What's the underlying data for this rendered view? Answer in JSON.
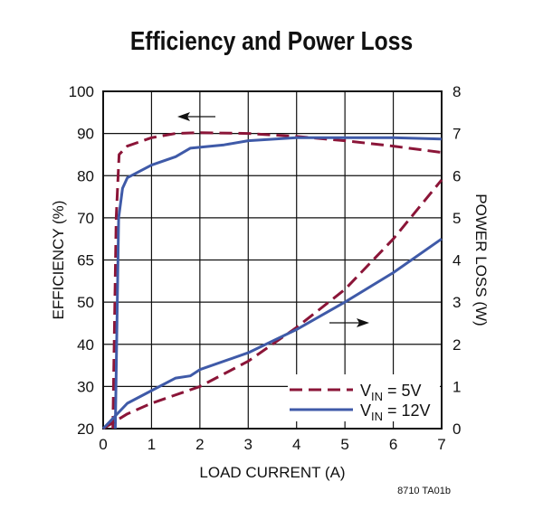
{
  "chart_data": {
    "type": "line",
    "title": "Efficiency and Power Loss",
    "xlabel": "LOAD CURRENT (A)",
    "ylabel_left": "EFFICIENCY (%)",
    "ylabel_right": "POWER LOSS (W)",
    "xlim": [
      0,
      7
    ],
    "ylim_left": [
      20,
      100
    ],
    "ylim_right": [
      0,
      8
    ],
    "x_ticks": [
      "0",
      "1",
      "2",
      "3",
      "4",
      "5",
      "6",
      "7"
    ],
    "y_left_ticks": [
      "20",
      "30",
      "40",
      "50",
      "65",
      "70",
      "80",
      "90",
      "100"
    ],
    "y_right_ticks": [
      "0",
      "1",
      "2",
      "3",
      "4",
      "5",
      "6",
      "7",
      "8"
    ],
    "grid": true,
    "legend_position": "bottom-right",
    "footnote": "8710 TA01b",
    "series": [
      {
        "name": "VIN = 5V",
        "legend_main": "V",
        "legend_sub": "IN",
        "legend_rest": " = 5V",
        "axis": "left",
        "style": "dashed",
        "color": "#8b1538",
        "x": [
          0.2,
          0.27,
          0.33,
          0.5,
          1,
          1.5,
          2,
          3,
          4,
          5,
          6,
          7
        ],
        "y": [
          20,
          70,
          85,
          87,
          89,
          90,
          90.2,
          90,
          89.3,
          88.3,
          87,
          85.5
        ]
      },
      {
        "name": "VIN = 12V",
        "legend_main": "V",
        "legend_sub": "IN",
        "legend_rest": " = 12V",
        "axis": "left",
        "style": "solid",
        "color": "#3f5aa8",
        "x": [
          0.25,
          0.32,
          0.4,
          0.5,
          1,
          1.5,
          1.8,
          2.5,
          3,
          4,
          5,
          6,
          7
        ],
        "y": [
          20,
          70,
          77,
          79.5,
          82.5,
          84.5,
          86.5,
          87.3,
          88.3,
          89,
          89,
          89,
          88.7
        ]
      },
      {
        "name": "VIN = 5V",
        "axis": "right",
        "style": "dashed",
        "color": "#8b1538",
        "x": [
          0,
          0.5,
          1,
          2,
          3,
          4,
          5,
          6,
          7
        ],
        "y": [
          0,
          0.35,
          0.6,
          1,
          1.6,
          2.4,
          3.3,
          4.5,
          5.9
        ]
      },
      {
        "name": "VIN = 12V",
        "axis": "right",
        "style": "solid",
        "color": "#3f5aa8",
        "x": [
          0,
          0.5,
          1,
          1.5,
          1.8,
          2,
          3,
          4,
          5,
          6,
          7
        ],
        "y": [
          0,
          0.6,
          0.9,
          1.2,
          1.25,
          1.4,
          1.8,
          2.35,
          3,
          3.7,
          4.5
        ]
      }
    ],
    "annotations": [
      {
        "type": "arrow",
        "direction": "left",
        "points_to": "left axis"
      },
      {
        "type": "arrow",
        "direction": "right",
        "points_to": "right axis"
      }
    ]
  }
}
